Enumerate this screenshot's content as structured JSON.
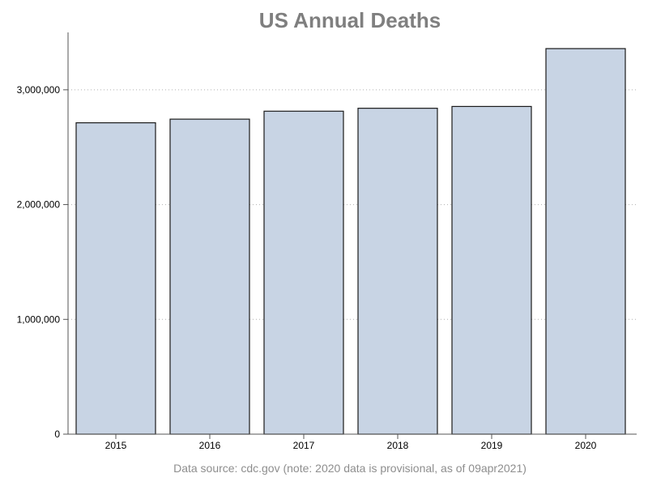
{
  "chart_data": {
    "type": "bar",
    "title": "US Annual Deaths",
    "categories": [
      "2015",
      "2016",
      "2017",
      "2018",
      "2019",
      "2020"
    ],
    "values": [
      2712630,
      2744248,
      2813503,
      2839205,
      2854838,
      3358814
    ],
    "xlabel": "",
    "ylabel": "",
    "ylim": [
      0,
      3500000
    ],
    "yticks": [
      0,
      1000000,
      2000000,
      3000000
    ],
    "ytick_labels": [
      "0",
      "1,000,000",
      "2,000,000",
      "3,000,000"
    ],
    "grid": "horizontal-dotted",
    "footnote": "Data source: cdc.gov (note: 2020 data is provisional, as of 09apr2021)",
    "colors": {
      "bar_fill": "#c8d4e4",
      "bar_stroke": "#1a1a1a",
      "grid": "#b0b0b0",
      "axis": "#555555",
      "title": "#7f7f7f",
      "footnote": "#8e8e8e"
    }
  }
}
